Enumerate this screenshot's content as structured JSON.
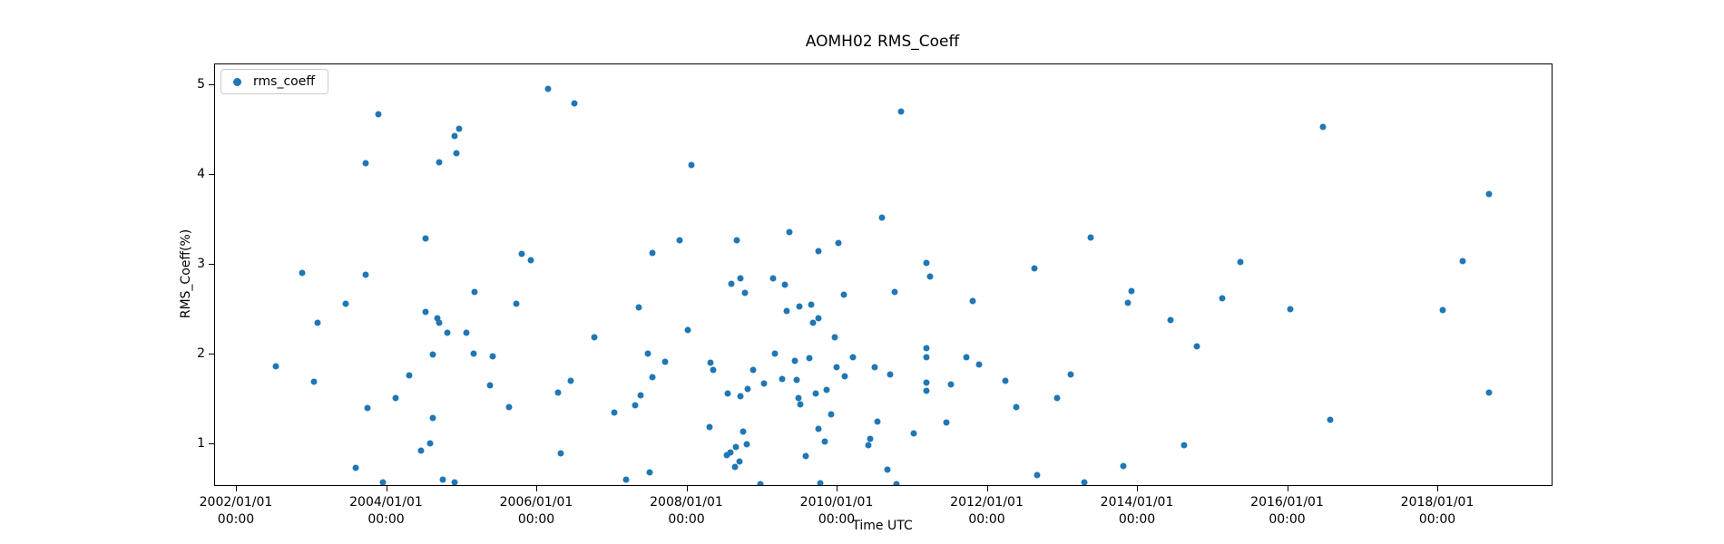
{
  "figure": {
    "title": "AOMH02 RMS_Coeff"
  },
  "legend": {
    "label": "rms_coeff"
  },
  "chart_data": {
    "type": "scatter",
    "title": "AOMH02 RMS_Coeff",
    "xlabel": "Time UTC",
    "ylabel": "RMS_Coeff(%)",
    "grid": false,
    "legend_position": "upper left",
    "marker": "circle",
    "marker_color": "#1f77b4",
    "axes": {
      "xlim": [
        2001.71,
        2019.51
      ],
      "ylim": [
        0.545,
        5.237
      ],
      "x_unit": "decimal_year"
    },
    "xticks": [
      {
        "year": 2002,
        "label": "2002/01/01",
        "sublabel": "00:00"
      },
      {
        "year": 2004,
        "label": "2004/01/01",
        "sublabel": "00:00"
      },
      {
        "year": 2006,
        "label": "2006/01/01",
        "sublabel": "00:00"
      },
      {
        "year": 2008,
        "label": "2008/01/01",
        "sublabel": "00:00"
      },
      {
        "year": 2010,
        "label": "2010/01/01",
        "sublabel": "00:00"
      },
      {
        "year": 2012,
        "label": "2012/01/01",
        "sublabel": "00:00"
      },
      {
        "year": 2014,
        "label": "2014/01/01",
        "sublabel": "00:00"
      },
      {
        "year": 2016,
        "label": "2016/01/01",
        "sublabel": "00:00"
      },
      {
        "year": 2018,
        "label": "2018/01/01",
        "sublabel": "00:00"
      }
    ],
    "yticks": [
      {
        "value": 1,
        "label": "1"
      },
      {
        "value": 2,
        "label": "2"
      },
      {
        "value": 3,
        "label": "3"
      },
      {
        "value": 4,
        "label": "4"
      },
      {
        "value": 5,
        "label": "5"
      }
    ],
    "series": [
      {
        "name": "rms_coeff",
        "color": "#1f77b4",
        "points": [
          [
            2003.89,
            4.68
          ],
          [
            2006.14,
            4.96
          ],
          [
            2006.5,
            4.8
          ],
          [
            2004.96,
            4.52
          ],
          [
            2004.9,
            4.44
          ],
          [
            2004.92,
            4.25
          ],
          [
            2003.72,
            4.13
          ],
          [
            2004.69,
            4.14
          ],
          [
            2004.51,
            3.3
          ],
          [
            2005.79,
            3.12
          ],
          [
            2005.92,
            3.05
          ],
          [
            2002.87,
            2.91
          ],
          [
            2003.72,
            2.89
          ],
          [
            2010.84,
            4.71
          ],
          [
            2008.06,
            4.11
          ],
          [
            2010.59,
            3.53
          ],
          [
            2009.36,
            3.37
          ],
          [
            2007.9,
            3.28
          ],
          [
            2008.66,
            3.28
          ],
          [
            2010.01,
            3.24
          ],
          [
            2009.74,
            3.15
          ],
          [
            2007.53,
            3.13
          ],
          [
            2011.19,
            3.02
          ],
          [
            2013.37,
            3.31
          ],
          [
            2012.62,
            2.96
          ],
          [
            2011.23,
            2.87
          ],
          [
            2008.59,
            2.79
          ],
          [
            2008.71,
            2.85
          ],
          [
            2008.77,
            2.69
          ],
          [
            2009.14,
            2.85
          ],
          [
            2009.3,
            2.78
          ],
          [
            2016.46,
            4.54
          ],
          [
            2018.68,
            3.79
          ],
          [
            2015.36,
            3.03
          ],
          [
            2018.33,
            3.04
          ],
          [
            2003.45,
            2.57
          ],
          [
            2003.08,
            2.36
          ],
          [
            2005.17,
            2.7
          ],
          [
            2005.72,
            2.57
          ],
          [
            2004.51,
            2.48
          ],
          [
            2004.67,
            2.41
          ],
          [
            2004.7,
            2.36
          ],
          [
            2004.8,
            2.24
          ],
          [
            2005.06,
            2.24
          ],
          [
            2005.16,
            2.01
          ],
          [
            2004.61,
            2.0
          ],
          [
            2005.41,
            1.98
          ],
          [
            2006.76,
            2.19
          ],
          [
            2002.52,
            1.87
          ],
          [
            2003.03,
            1.7
          ],
          [
            2004.3,
            1.77
          ],
          [
            2005.37,
            1.66
          ],
          [
            2006.28,
            1.58
          ],
          [
            2006.45,
            1.71
          ],
          [
            2004.11,
            1.52
          ],
          [
            2003.74,
            1.4
          ],
          [
            2005.63,
            1.41
          ],
          [
            2007.03,
            1.35
          ],
          [
            2004.61,
            1.29
          ],
          [
            2004.45,
            0.93
          ],
          [
            2004.57,
            1.01
          ],
          [
            2003.58,
            0.74
          ],
          [
            2003.94,
            0.58
          ],
          [
            2004.74,
            0.61
          ],
          [
            2004.9,
            0.58
          ],
          [
            2006.32,
            0.9
          ],
          [
            2007.19,
            0.61
          ],
          [
            2007.35,
            2.53
          ],
          [
            2009.32,
            2.49
          ],
          [
            2009.49,
            2.54
          ],
          [
            2009.65,
            2.56
          ],
          [
            2009.67,
            2.36
          ],
          [
            2009.75,
            2.41
          ],
          [
            2008.0,
            2.27
          ],
          [
            2009.96,
            2.19
          ],
          [
            2010.09,
            2.67
          ],
          [
            2010.76,
            2.7
          ],
          [
            2011.8,
            2.6
          ],
          [
            2007.48,
            2.01
          ],
          [
            2007.7,
            1.92
          ],
          [
            2007.54,
            1.75
          ],
          [
            2008.31,
            1.91
          ],
          [
            2008.34,
            1.83
          ],
          [
            2007.38,
            1.55
          ],
          [
            2007.3,
            1.43
          ],
          [
            2009.16,
            2.01
          ],
          [
            2009.43,
            1.93
          ],
          [
            2009.62,
            1.96
          ],
          [
            2010.2,
            1.97
          ],
          [
            2009.99,
            1.86
          ],
          [
            2010.1,
            1.76
          ],
          [
            2010.49,
            1.86
          ],
          [
            2010.7,
            1.78
          ],
          [
            2008.88,
            1.83
          ],
          [
            2009.02,
            1.68
          ],
          [
            2009.26,
            1.73
          ],
          [
            2009.46,
            1.72
          ],
          [
            2008.54,
            1.57
          ],
          [
            2008.71,
            1.54
          ],
          [
            2008.8,
            1.62
          ],
          [
            2009.48,
            1.52
          ],
          [
            2009.51,
            1.44
          ],
          [
            2009.71,
            1.57
          ],
          [
            2009.86,
            1.61
          ],
          [
            2009.92,
            1.33
          ],
          [
            2008.29,
            1.19
          ],
          [
            2008.74,
            1.14
          ],
          [
            2009.75,
            1.17
          ],
          [
            2009.83,
            1.03
          ],
          [
            2010.44,
            1.06
          ],
          [
            2010.41,
            0.99
          ],
          [
            2010.53,
            1.25
          ],
          [
            2011.01,
            1.12
          ],
          [
            2008.65,
            0.97
          ],
          [
            2008.57,
            0.91
          ],
          [
            2008.53,
            0.88
          ],
          [
            2008.7,
            0.81
          ],
          [
            2008.63,
            0.75
          ],
          [
            2008.79,
            1.0
          ],
          [
            2009.58,
            0.87
          ],
          [
            2009.77,
            0.57
          ],
          [
            2008.97,
            0.56
          ],
          [
            2007.5,
            0.69
          ],
          [
            2010.66,
            0.72
          ],
          [
            2010.79,
            0.56
          ],
          [
            2011.19,
            2.07
          ],
          [
            2011.19,
            1.97
          ],
          [
            2011.19,
            1.69
          ],
          [
            2011.19,
            1.6
          ],
          [
            2011.51,
            1.67
          ],
          [
            2011.71,
            1.97
          ],
          [
            2011.88,
            1.89
          ],
          [
            2011.45,
            1.24
          ],
          [
            2012.24,
            1.71
          ],
          [
            2012.38,
            1.41
          ],
          [
            2012.66,
            0.66
          ],
          [
            2012.92,
            1.52
          ],
          [
            2013.1,
            1.78
          ],
          [
            2013.29,
            0.58
          ],
          [
            2013.91,
            2.71
          ],
          [
            2013.87,
            2.58
          ],
          [
            2014.43,
            2.39
          ],
          [
            2015.12,
            2.63
          ],
          [
            2014.79,
            2.09
          ],
          [
            2016.03,
            2.51
          ],
          [
            2016.56,
            1.27
          ],
          [
            2018.06,
            2.5
          ],
          [
            2018.68,
            1.58
          ],
          [
            2014.61,
            0.99
          ],
          [
            2013.81,
            0.76
          ]
        ]
      }
    ]
  }
}
